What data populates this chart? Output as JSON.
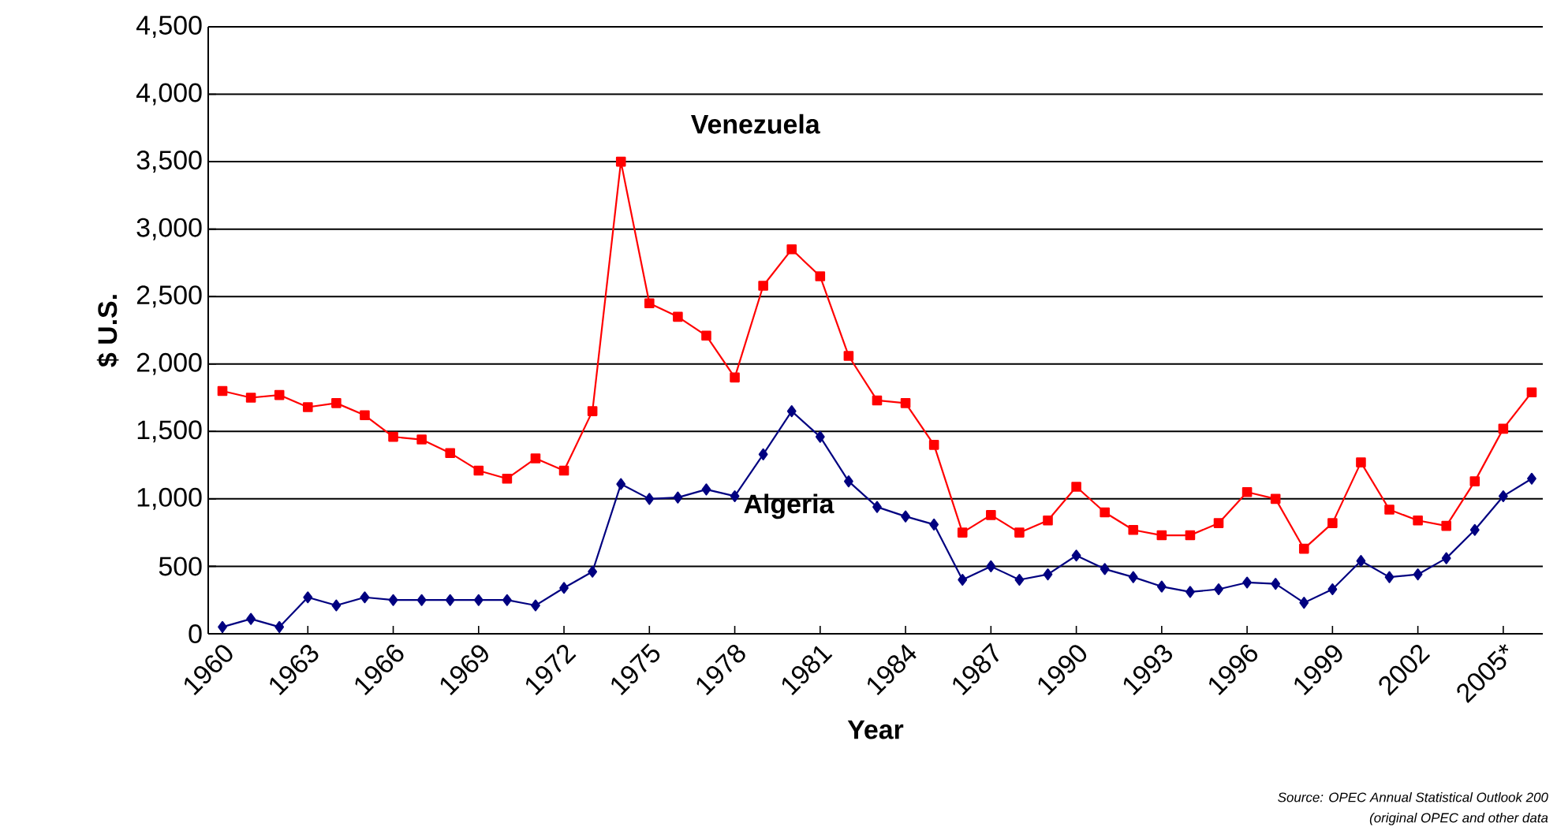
{
  "chart_data": {
    "type": "line",
    "xlabel": "Year",
    "ylabel": "$ U.S.",
    "categories": [
      "1960",
      null,
      null,
      "1963",
      null,
      null,
      "1966",
      null,
      null,
      "1969",
      null,
      null,
      "1972",
      null,
      null,
      "1975",
      null,
      null,
      "1978",
      null,
      null,
      "1981",
      null,
      null,
      "1984",
      null,
      null,
      "1987",
      null,
      null,
      "1990",
      null,
      null,
      "1993",
      null,
      null,
      "1996",
      null,
      null,
      "1999",
      null,
      null,
      "2002",
      null,
      null,
      "2005*",
      null
    ],
    "series": [
      {
        "name": "Venezuela",
        "color": "#ff0000",
        "marker": "square",
        "values": [
          1800,
          1750,
          1770,
          1680,
          1710,
          1620,
          1460,
          1440,
          1340,
          1210,
          1150,
          1300,
          1210,
          1650,
          3500,
          2450,
          2350,
          2210,
          1900,
          2580,
          2850,
          2650,
          2060,
          1730,
          1710,
          1400,
          750,
          880,
          750,
          840,
          1090,
          900,
          770,
          730,
          730,
          820,
          1050,
          1000,
          630,
          820,
          1270,
          920,
          840,
          800,
          1130,
          1520,
          1790
        ]
      },
      {
        "name": "Algeria",
        "color": "#000080",
        "marker": "diamond",
        "values": [
          50,
          110,
          50,
          270,
          210,
          270,
          250,
          250,
          250,
          250,
          250,
          210,
          340,
          460,
          1110,
          1000,
          1010,
          1070,
          1020,
          1330,
          1650,
          1460,
          1130,
          940,
          870,
          810,
          400,
          500,
          400,
          440,
          580,
          480,
          420,
          350,
          310,
          330,
          380,
          370,
          230,
          330,
          540,
          420,
          440,
          560,
          770,
          1020,
          1150
        ]
      }
    ],
    "ylim": [
      0,
      4500
    ],
    "yticks": [
      0,
      500,
      {
        "value": 1000,
        "label": "1,000"
      },
      {
        "value": 1500,
        "label": "1,500"
      },
      {
        "value": 2000,
        "label": "2,000"
      },
      {
        "value": 2500,
        "label": "2,500"
      },
      {
        "value": 3000,
        "label": "3,000"
      },
      {
        "value": 3500,
        "label": "3,500"
      },
      {
        "value": 4000,
        "label": "4,000"
      },
      {
        "value": 4500,
        "label": "4,500"
      }
    ],
    "grid": "y",
    "legend": false,
    "annotations": [
      "Source: OPEC Annual Statistical Outlook 200",
      "(original OPEC and other data"
    ]
  }
}
